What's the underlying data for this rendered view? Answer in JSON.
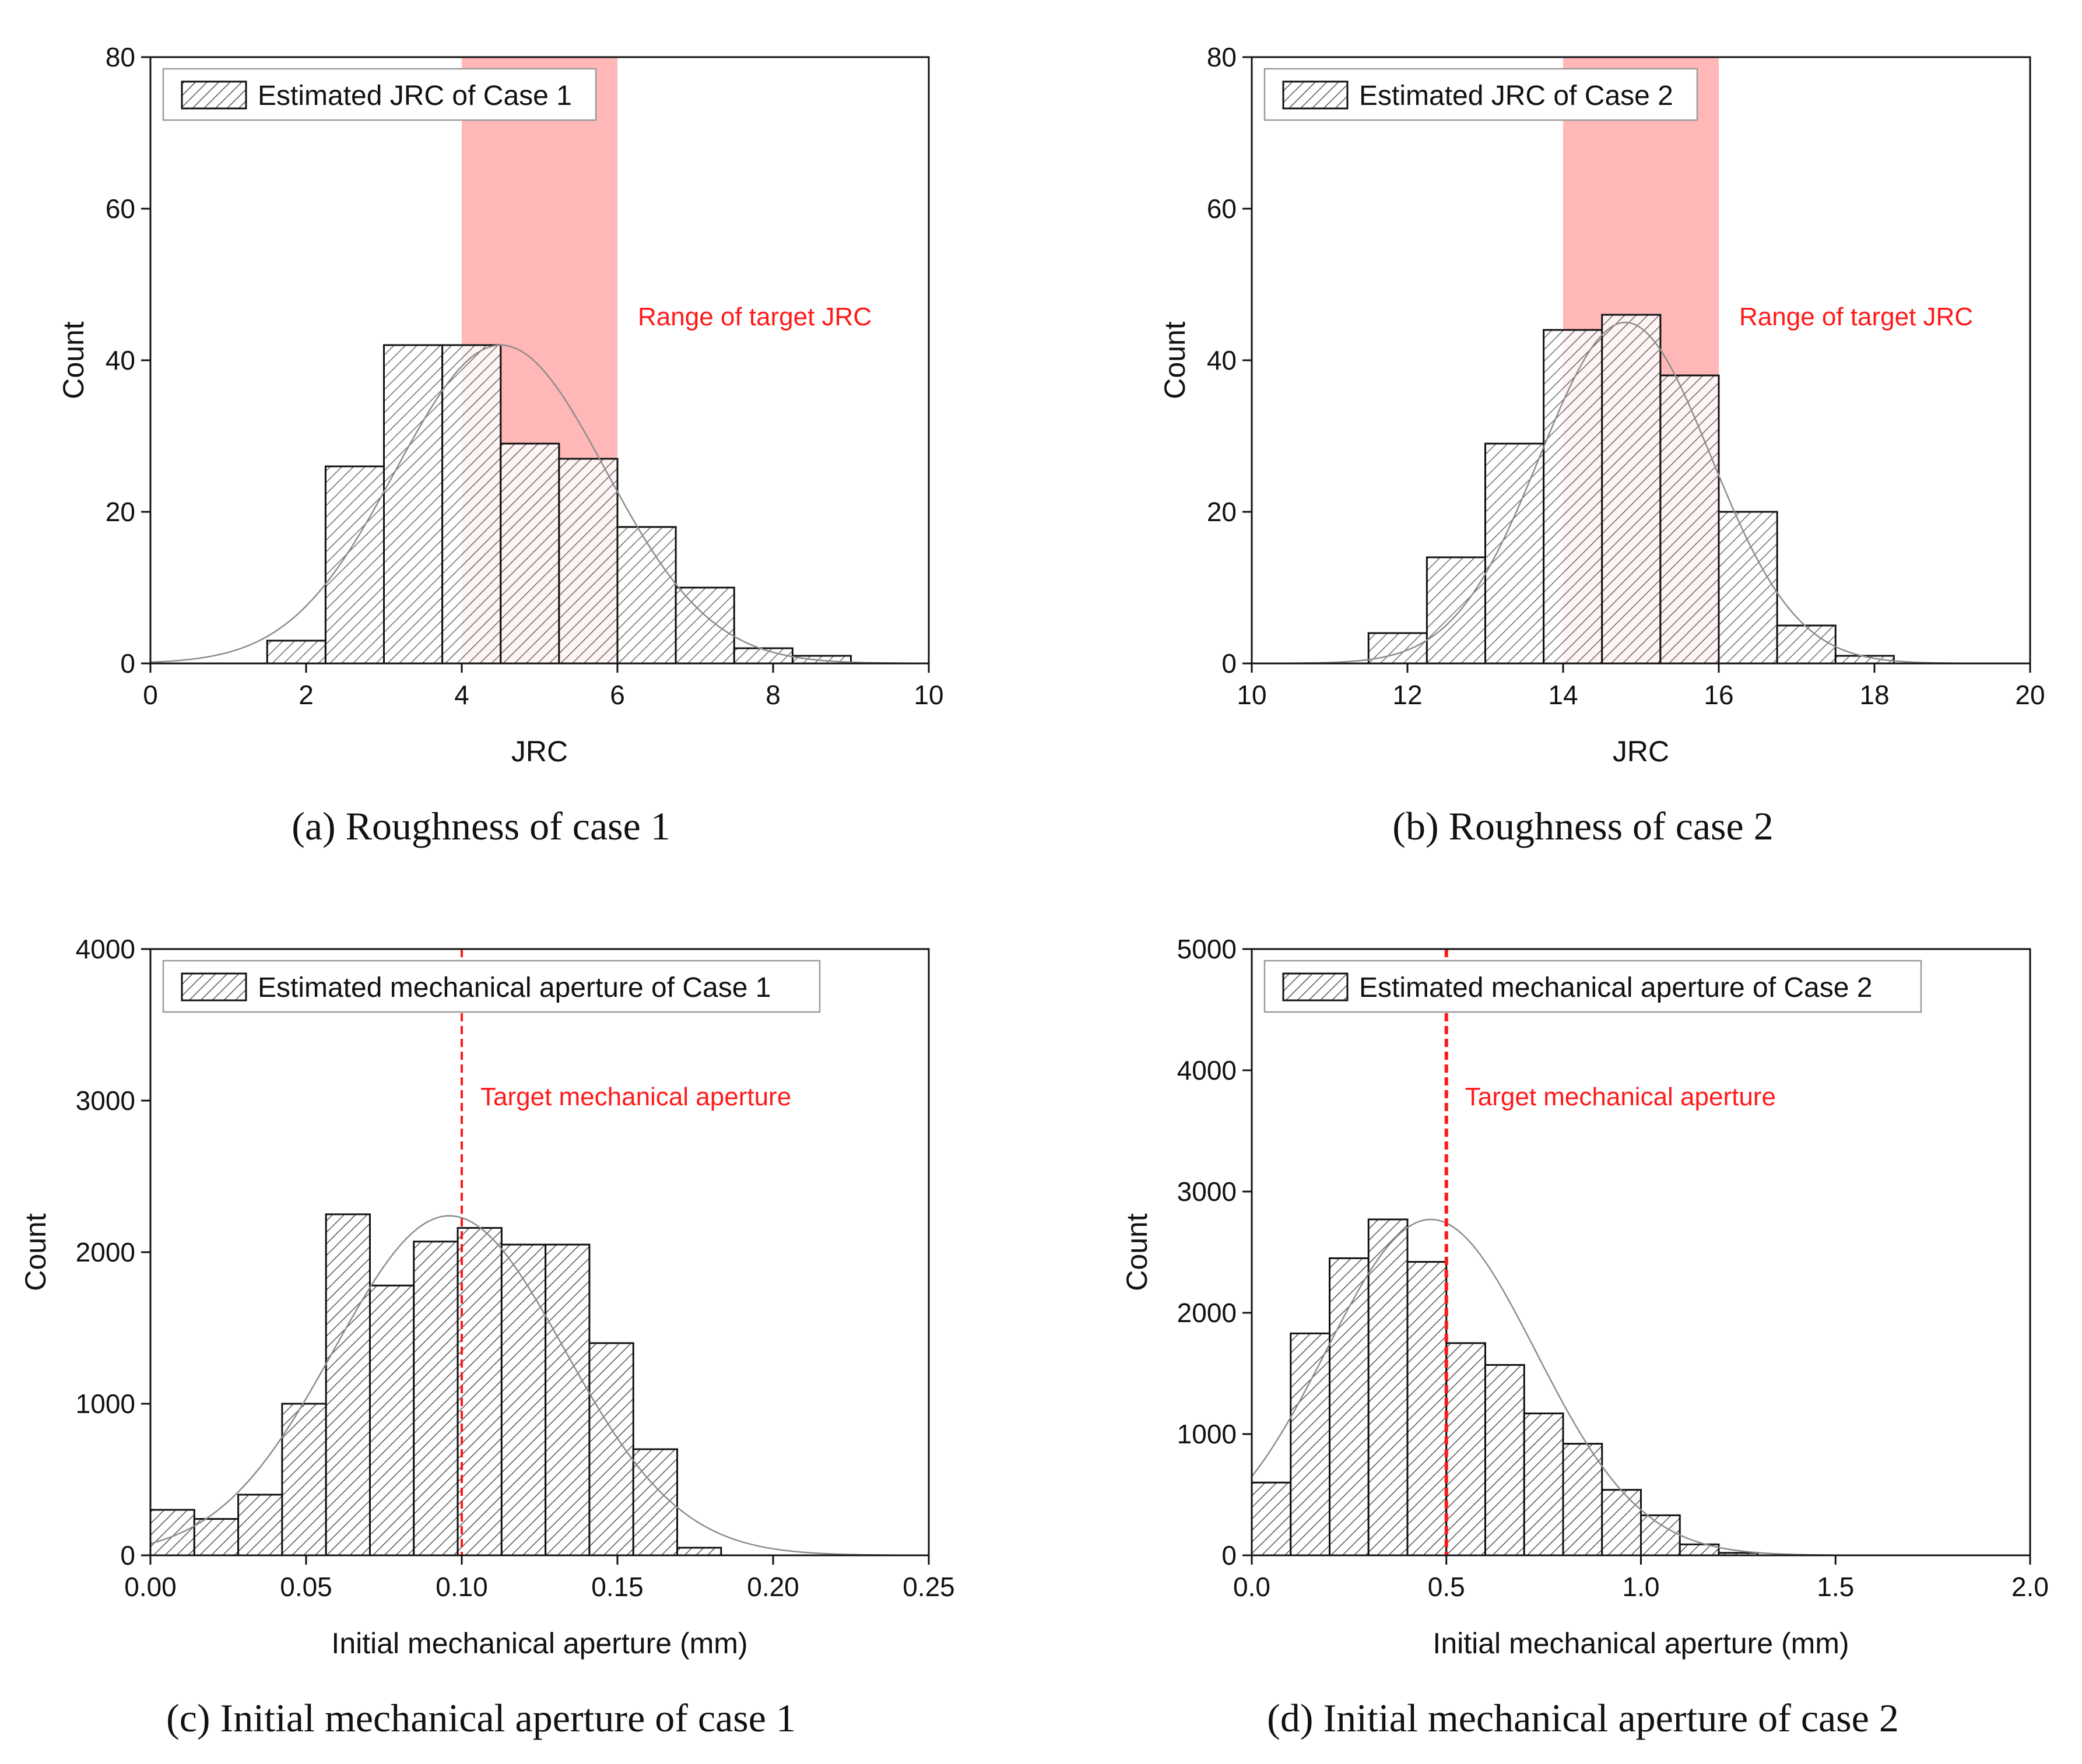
{
  "figure": {
    "colors": {
      "bar_hatch": "#555555",
      "bar_outline": "#111111",
      "fit_curve": "#8c8c8c",
      "highlight": "#ff9999",
      "annotation": "#ff1a1a",
      "axis": "#111111"
    }
  },
  "chart_data": [
    {
      "id": "a",
      "type": "bar",
      "caption": "(a) Roughness of case 1",
      "xlabel": "JRC",
      "ylabel": "Count",
      "xlim": [
        0,
        10
      ],
      "ylim": [
        0,
        80
      ],
      "xticks": [
        "0",
        "2",
        "4",
        "6",
        "8",
        "10"
      ],
      "xtick_values": [
        0,
        2,
        4,
        6,
        8,
        10
      ],
      "yticks": [
        "0",
        "20",
        "40",
        "60",
        "80"
      ],
      "ytick_values": [
        0,
        20,
        40,
        60,
        80
      ],
      "legend": "Estimated JRC of Case 1",
      "legend_position": "top-left",
      "bin_edges": [
        1.5,
        2.25,
        3.0,
        3.75,
        4.5,
        5.25,
        6.0,
        6.75,
        7.5,
        8.25,
        9.0
      ],
      "values": [
        3,
        26,
        42,
        42,
        29,
        27,
        18,
        10,
        2,
        1
      ],
      "fit": {
        "type": "normal",
        "mean": 4.5,
        "sd": 1.35,
        "peak": 42
      },
      "highlight": {
        "x_range": [
          4,
          6
        ],
        "label": "Range of target JRC"
      }
    },
    {
      "id": "b",
      "type": "bar",
      "caption": "(b) Roughness of case 2",
      "xlabel": "JRC",
      "ylabel": "Count",
      "xlim": [
        10,
        20
      ],
      "ylim": [
        0,
        80
      ],
      "xticks": [
        "10",
        "12",
        "14",
        "16",
        "18",
        "20"
      ],
      "xtick_values": [
        10,
        12,
        14,
        16,
        18,
        20
      ],
      "yticks": [
        "0",
        "20",
        "40",
        "60",
        "80"
      ],
      "ytick_values": [
        0,
        20,
        40,
        60,
        80
      ],
      "legend": "Estimated JRC of Case 2",
      "legend_position": "top-left",
      "bin_edges": [
        11.5,
        12.25,
        13.0,
        13.75,
        14.5,
        15.25,
        16.0,
        16.75,
        17.5,
        18.25
      ],
      "values": [
        4,
        14,
        29,
        44,
        46,
        38,
        20,
        5,
        1
      ],
      "fit": {
        "type": "normal",
        "mean": 14.8,
        "sd": 1.1,
        "peak": 45
      },
      "highlight": {
        "x_range": [
          14,
          16
        ],
        "label": "Range of target JRC"
      }
    },
    {
      "id": "c",
      "type": "bar",
      "caption": "(c) Initial mechanical aperture of case 1",
      "xlabel": "Initial mechanical aperture (mm)",
      "ylabel": "Count",
      "xlim": [
        0,
        0.25
      ],
      "ylim": [
        0,
        4000
      ],
      "xticks": [
        "0.00",
        "0.05",
        "0.10",
        "0.15",
        "0.20",
        "0.25"
      ],
      "xtick_values": [
        0,
        0.05,
        0.1,
        0.15,
        0.2,
        0.25
      ],
      "yticks": [
        "0",
        "1000",
        "2000",
        "3000",
        "4000"
      ],
      "ytick_values": [
        0,
        1000,
        2000,
        3000,
        4000
      ],
      "legend": "Estimated mechanical aperture of Case 1",
      "legend_position": "top-left",
      "bin_edges": [
        0.0,
        0.0141,
        0.0282,
        0.0423,
        0.0564,
        0.0705,
        0.0846,
        0.0987,
        0.1128,
        0.1269,
        0.141,
        0.1551,
        0.1692,
        0.1833
      ],
      "values": [
        300,
        240,
        400,
        1000,
        2250,
        1780,
        2070,
        2160,
        2050,
        2050,
        1400,
        700,
        50
      ],
      "fit": {
        "type": "normal",
        "mean": 0.096,
        "sd": 0.037,
        "peak": 2240
      },
      "target_line": {
        "x": 0.1,
        "label": "Target mechanical aperture"
      }
    },
    {
      "id": "d",
      "type": "bar",
      "caption": "(d) Initial mechanical aperture of case 2",
      "xlabel": "Initial mechanical aperture (mm)",
      "ylabel": "Count",
      "xlim": [
        0,
        2.0
      ],
      "ylim": [
        0,
        5000
      ],
      "xticks": [
        "0.0",
        "0.5",
        "1.0",
        "1.5",
        "2.0"
      ],
      "xtick_values": [
        0,
        0.5,
        1.0,
        1.5,
        2.0
      ],
      "yticks": [
        "0",
        "1000",
        "2000",
        "3000",
        "4000",
        "5000"
      ],
      "ytick_values": [
        0,
        1000,
        2000,
        3000,
        4000,
        5000
      ],
      "legend": "Estimated mechanical aperture of Case 2",
      "legend_position": "top-left",
      "bin_edges": [
        0.0,
        0.1,
        0.2,
        0.3,
        0.4,
        0.5,
        0.6,
        0.7,
        0.8,
        0.9,
        1.0,
        1.1,
        1.2,
        1.3
      ],
      "values": [
        600,
        1830,
        2450,
        2770,
        2420,
        1750,
        1570,
        1170,
        920,
        540,
        330,
        90,
        20
      ],
      "fit": {
        "type": "normal",
        "mean": 0.46,
        "sd": 0.27,
        "peak": 2770
      },
      "target_line": {
        "x": 0.5,
        "label": "Target mechanical aperture"
      }
    }
  ]
}
